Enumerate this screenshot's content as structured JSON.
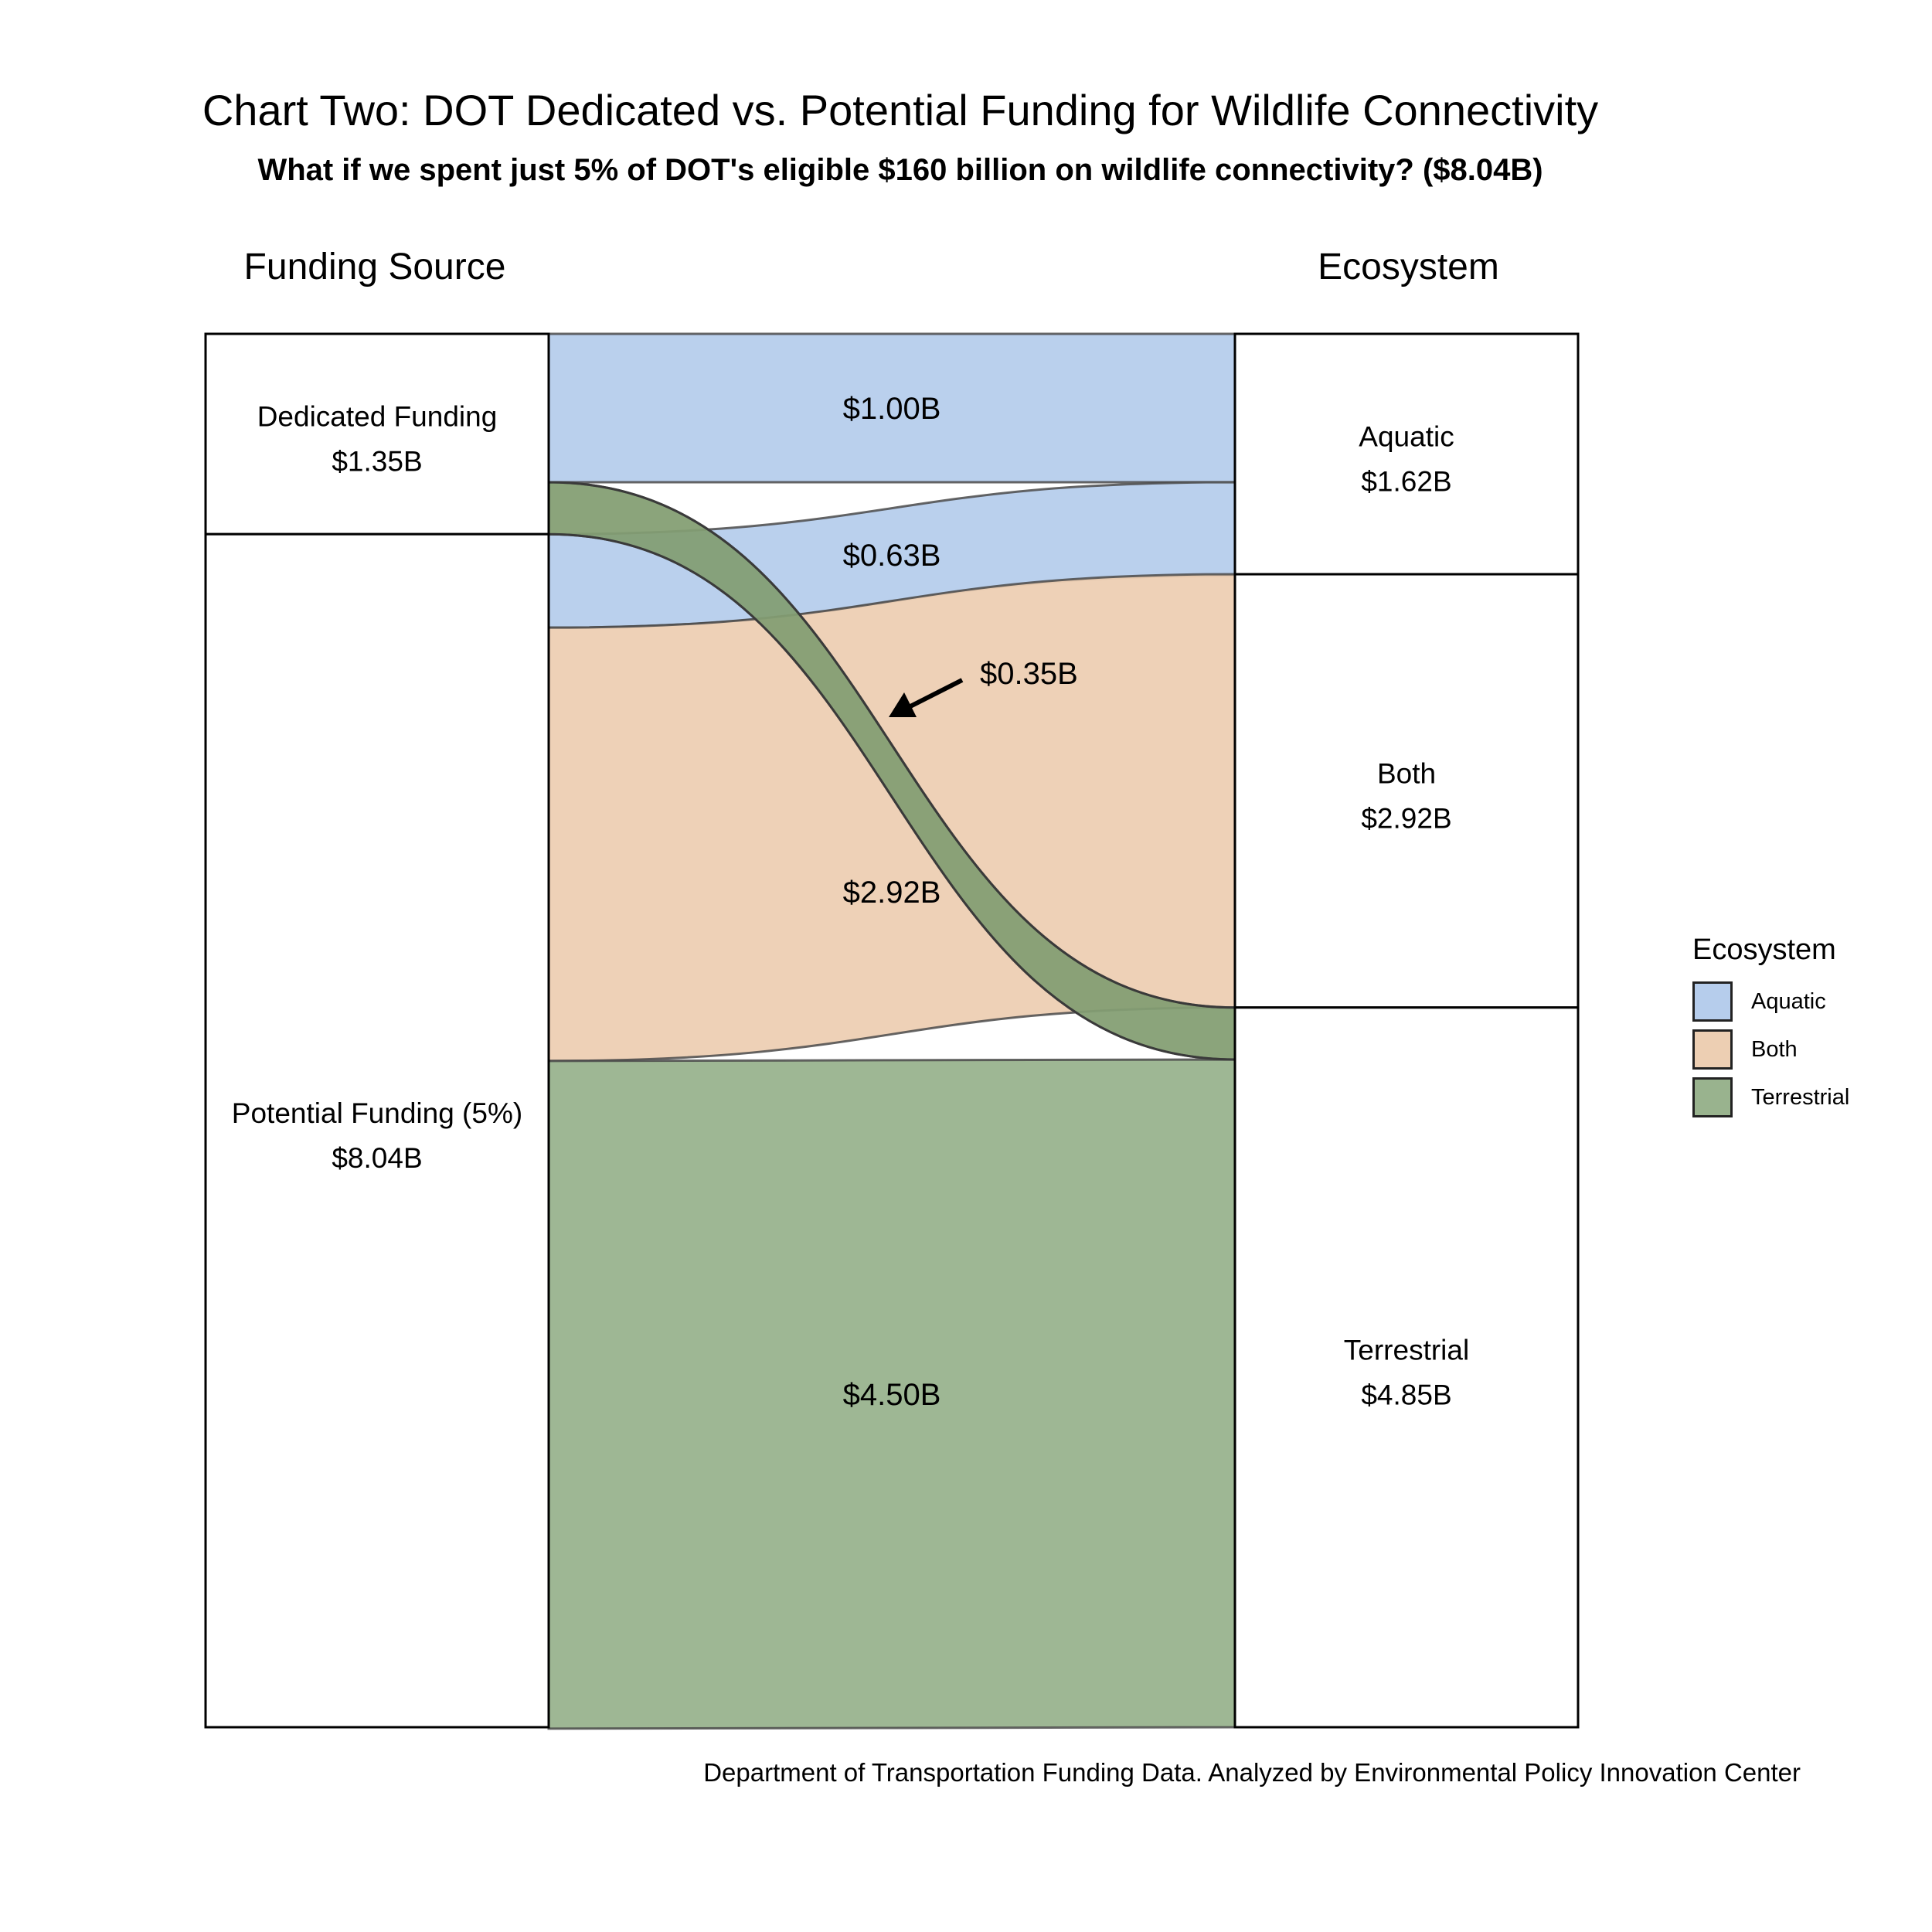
{
  "chart_data": {
    "type": "sankey",
    "title": "Chart Two: DOT Dedicated vs. Potential Funding for Wildlife Connectivity",
    "subtitle": "What if we spent just 5% of DOT's eligible $160 billion on wildlife connectivity? ($8.04B)",
    "caption": "Department of Transportation Funding Data. Analyzed by Environmental Policy Innovation Center",
    "axis_left_title": "Funding Source",
    "axis_right_title": "Ecosystem",
    "unit_prefix": "$",
    "unit_suffix": "B",
    "sources": [
      {
        "key": "dedicated",
        "name": "Dedicated Funding",
        "value": 1.35,
        "value_label": "$1.35B"
      },
      {
        "key": "potential",
        "name": "Potential Funding (5%)",
        "value": 8.04,
        "value_label": "$8.04B"
      }
    ],
    "targets": [
      {
        "key": "aquatic",
        "name": "Aquatic",
        "value": 1.62,
        "value_label": "$1.62B"
      },
      {
        "key": "both",
        "name": "Both",
        "value": 2.92,
        "value_label": "$2.92B"
      },
      {
        "key": "terrestrial",
        "name": "Terrestrial",
        "value": 4.85,
        "value_label": "$4.85B"
      }
    ],
    "flows": [
      {
        "source": "dedicated",
        "target": "aquatic",
        "value": 1.0,
        "label": "$1.00B"
      },
      {
        "source": "dedicated",
        "target": "terrestrial",
        "value": 0.35,
        "label": "$0.35B",
        "annotated_with_arrow": true
      },
      {
        "source": "potential",
        "target": "aquatic",
        "value": 0.63,
        "label": "$0.63B"
      },
      {
        "source": "potential",
        "target": "both",
        "value": 2.92,
        "label": "$2.92B"
      },
      {
        "source": "potential",
        "target": "terrestrial",
        "value": 4.5,
        "label": "$4.50B"
      }
    ],
    "legend": {
      "title": "Ecosystem",
      "position": "right",
      "items": [
        {
          "key": "aquatic",
          "label": "Aquatic",
          "color": "#b6cdec"
        },
        {
          "key": "both",
          "label": "Both",
          "color": "#edcfb3"
        },
        {
          "key": "terrestrial",
          "label": "Terrestrial",
          "color": "#99b38e"
        }
      ]
    },
    "node_fill": "#ffffff",
    "node_stroke": "#000000"
  }
}
